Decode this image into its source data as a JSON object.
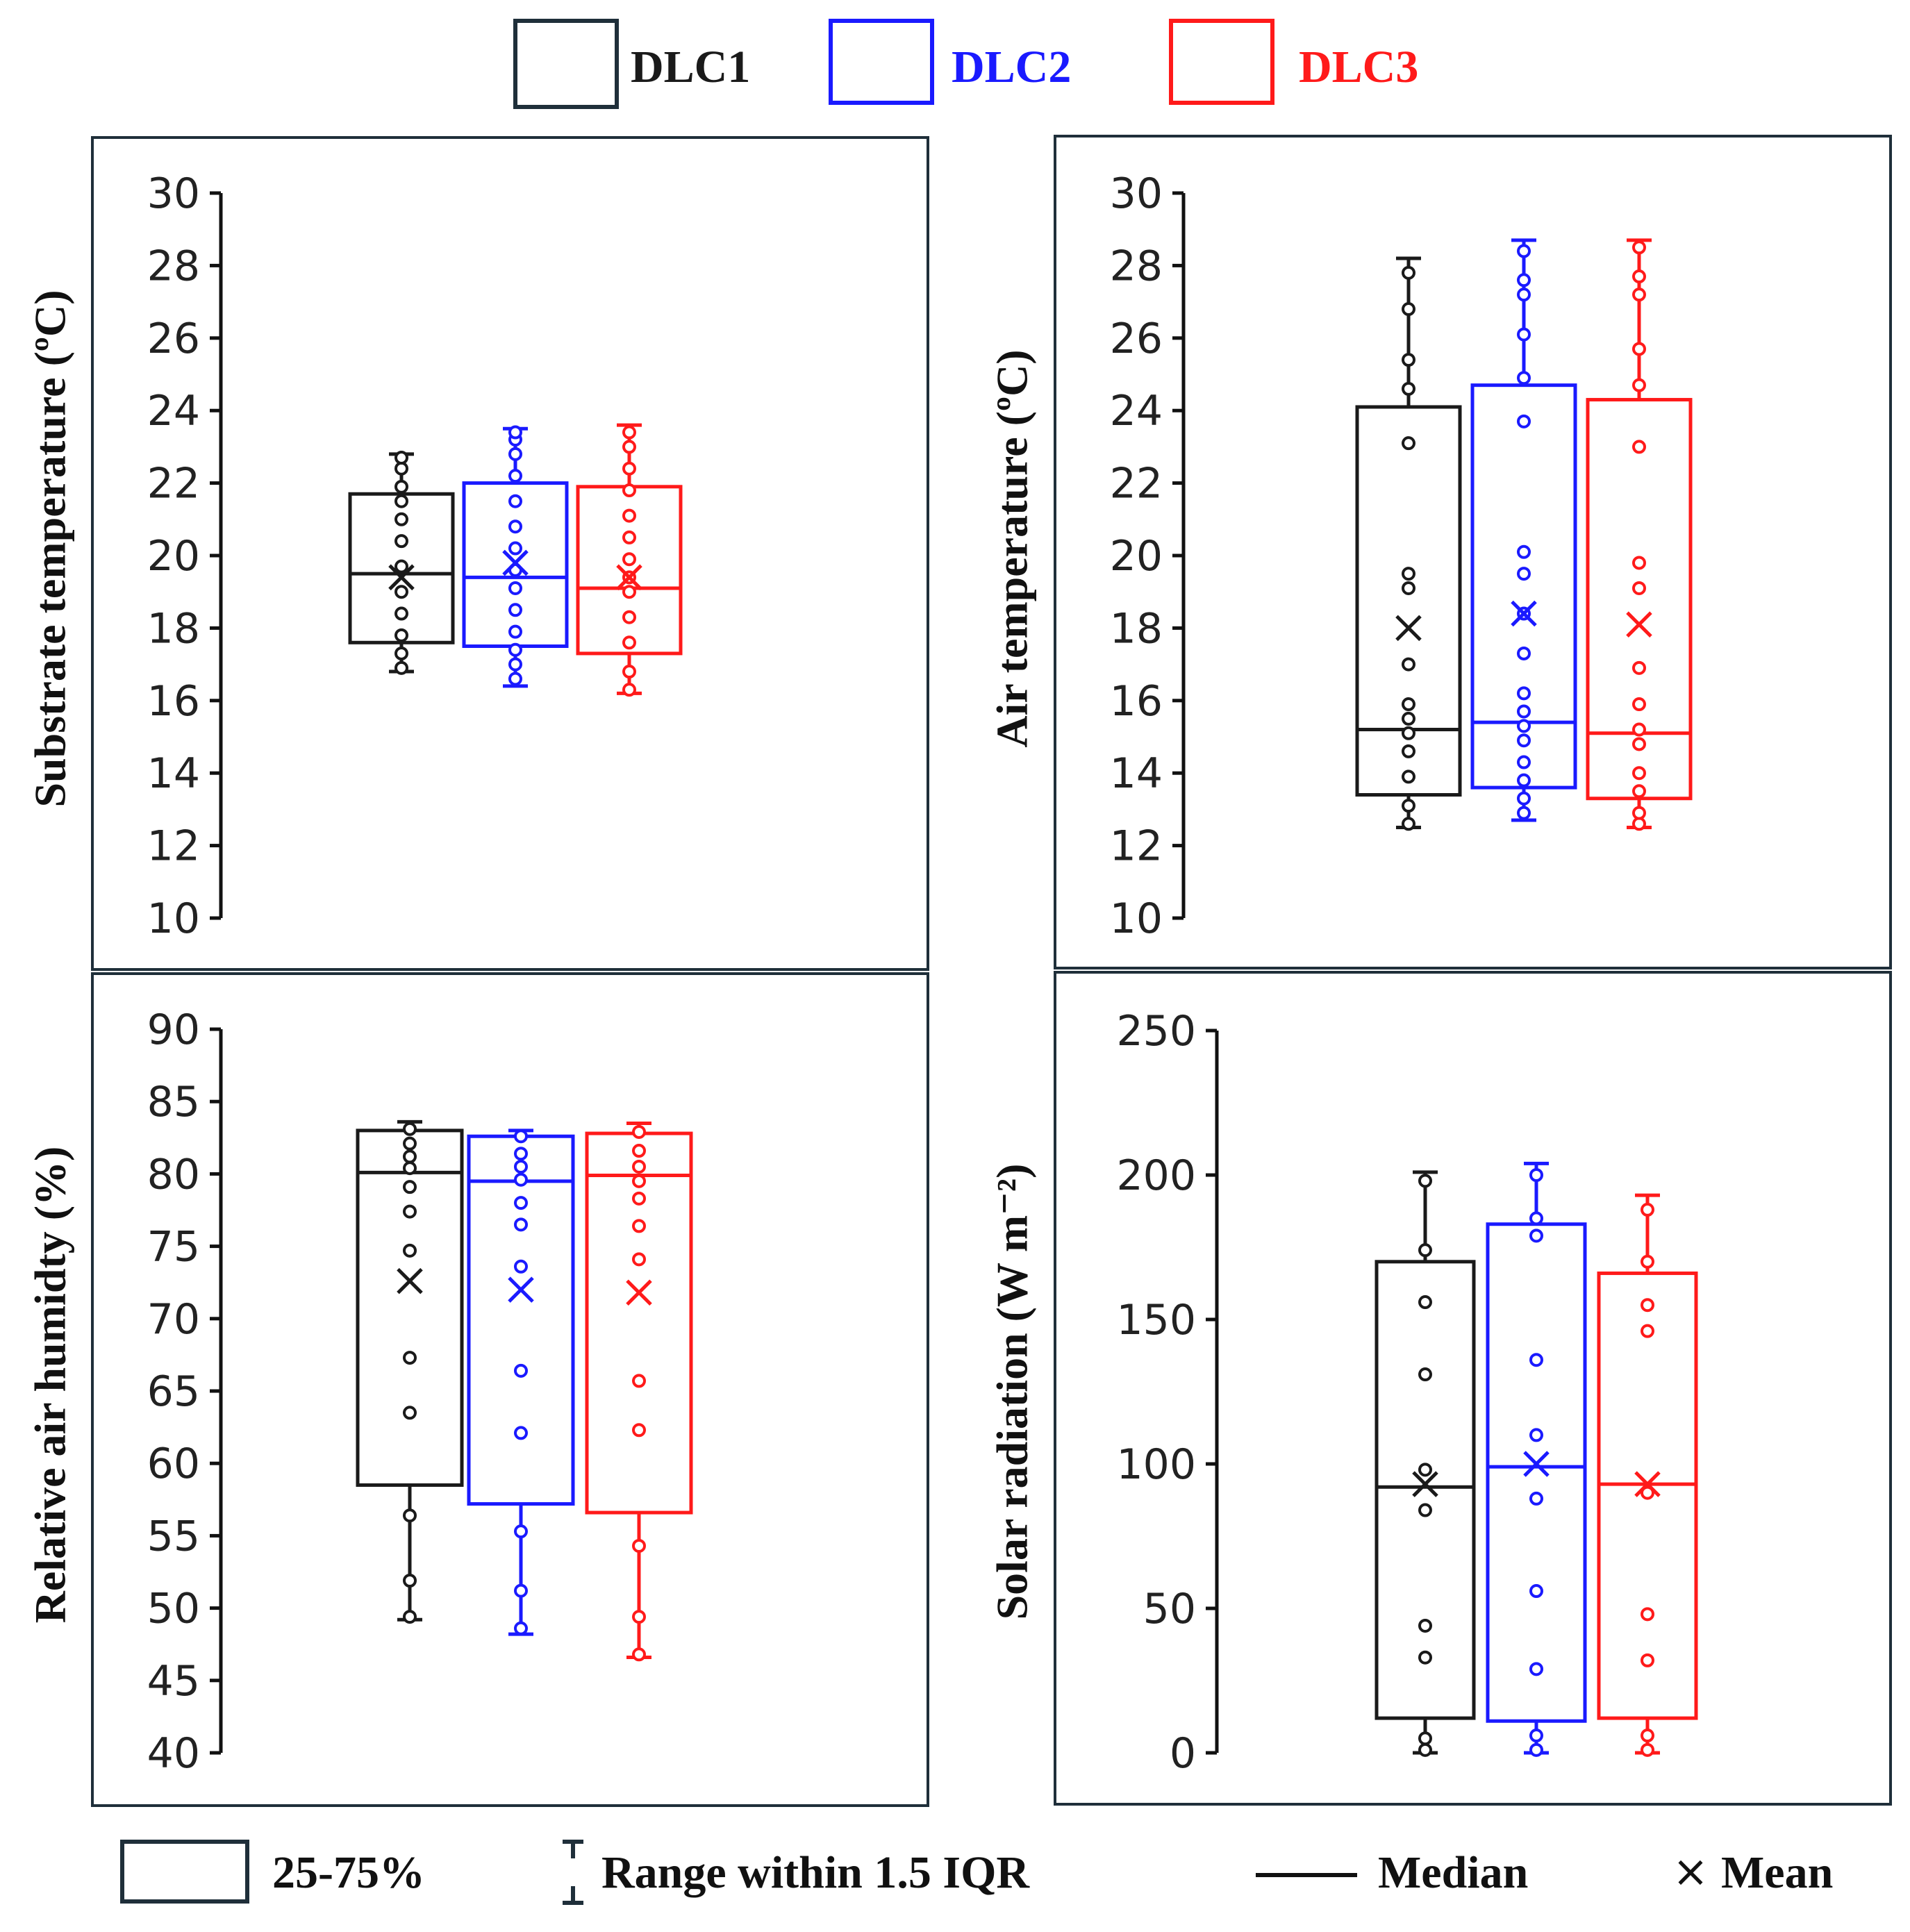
{
  "legend": {
    "series": [
      {
        "name": "DLC1",
        "color": "#1a1a1a",
        "frame": "#1f2f3a"
      },
      {
        "name": "DLC2",
        "color": "#1a1aff",
        "frame": "#1a1aff"
      },
      {
        "name": "DLC3",
        "color": "#ff1a1a",
        "frame": "#ff1a1a"
      }
    ]
  },
  "key": {
    "box_label": "25-75%",
    "range_label": "Range within 1.5 IQR",
    "median_label": "Median",
    "mean_symbol": "×",
    "mean_label": "Mean"
  },
  "chart_data": [
    {
      "type": "box",
      "id": "substrate",
      "ylabel": "Substrate temperature (ºC)",
      "ylim": [
        10,
        30
      ],
      "yticks": [
        10,
        12,
        14,
        16,
        18,
        20,
        22,
        24,
        26,
        28,
        30
      ],
      "series": [
        {
          "name": "DLC1",
          "q1": 17.6,
          "median": 19.5,
          "q3": 21.7,
          "mean": 19.4,
          "whisker_low": 16.8,
          "whisker_high": 22.8,
          "points": [
            16.9,
            17.3,
            17.8,
            18.4,
            19.0,
            19.7,
            20.4,
            21.0,
            21.5,
            21.9,
            22.4,
            22.7
          ]
        },
        {
          "name": "DLC2",
          "q1": 17.5,
          "median": 19.4,
          "q3": 22.0,
          "mean": 19.8,
          "whisker_low": 16.4,
          "whisker_high": 23.5,
          "points": [
            16.6,
            17.0,
            17.4,
            17.9,
            18.5,
            19.1,
            19.6,
            20.2,
            20.8,
            21.5,
            22.2,
            22.8,
            23.2,
            23.4
          ]
        },
        {
          "name": "DLC3",
          "q1": 17.3,
          "median": 19.1,
          "q3": 21.9,
          "mean": 19.4,
          "whisker_low": 16.2,
          "whisker_high": 23.6,
          "points": [
            16.3,
            16.8,
            17.6,
            18.3,
            19.0,
            19.4,
            19.9,
            20.5,
            21.1,
            21.8,
            22.4,
            23.0,
            23.4
          ]
        }
      ]
    },
    {
      "type": "box",
      "id": "air_temp",
      "ylabel": "Air temperature (ºC)",
      "ylim": [
        10,
        30
      ],
      "yticks": [
        10,
        12,
        14,
        16,
        18,
        20,
        22,
        24,
        26,
        28,
        30
      ],
      "series": [
        {
          "name": "DLC1",
          "q1": 13.4,
          "median": 15.2,
          "q3": 24.1,
          "mean": 18.0,
          "whisker_low": 12.5,
          "whisker_high": 28.2,
          "points": [
            12.6,
            13.1,
            13.9,
            14.6,
            15.1,
            15.5,
            15.9,
            17.0,
            19.1,
            19.5,
            23.1,
            24.6,
            25.4,
            26.8,
            27.8
          ]
        },
        {
          "name": "DLC2",
          "q1": 13.6,
          "median": 15.4,
          "q3": 24.7,
          "mean": 18.4,
          "whisker_low": 12.7,
          "whisker_high": 28.7,
          "points": [
            12.9,
            13.3,
            13.8,
            14.3,
            14.9,
            15.3,
            15.7,
            16.2,
            17.3,
            18.4,
            19.5,
            20.1,
            23.7,
            24.9,
            26.1,
            27.2,
            27.6,
            28.4
          ]
        },
        {
          "name": "DLC3",
          "q1": 13.3,
          "median": 15.1,
          "q3": 24.3,
          "mean": 18.1,
          "whisker_low": 12.5,
          "whisker_high": 28.7,
          "points": [
            12.6,
            12.9,
            13.5,
            14.0,
            14.8,
            15.2,
            15.9,
            16.9,
            19.1,
            19.8,
            23.0,
            24.7,
            25.7,
            27.2,
            27.7,
            28.5
          ]
        }
      ]
    },
    {
      "type": "box",
      "id": "humidity",
      "ylabel": "Relative air humidty (%)",
      "ylim": [
        40,
        90
      ],
      "yticks": [
        40,
        45,
        50,
        55,
        60,
        65,
        70,
        75,
        80,
        85,
        90
      ],
      "series": [
        {
          "name": "DLC1",
          "q1": 58.5,
          "median": 80.1,
          "q3": 83.0,
          "mean": 72.6,
          "whisker_low": 49.2,
          "whisker_high": 83.6,
          "points": [
            49.4,
            51.9,
            56.4,
            63.5,
            67.3,
            74.7,
            77.4,
            79.1,
            80.4,
            81.2,
            82.1,
            83.1
          ]
        },
        {
          "name": "DLC2",
          "q1": 57.2,
          "median": 79.5,
          "q3": 82.6,
          "mean": 72.0,
          "whisker_low": 48.2,
          "whisker_high": 83.0,
          "points": [
            48.6,
            51.2,
            55.3,
            62.1,
            66.4,
            73.6,
            76.5,
            78.0,
            79.6,
            80.5,
            81.4,
            82.6
          ]
        },
        {
          "name": "DLC3",
          "q1": 56.6,
          "median": 79.9,
          "q3": 82.8,
          "mean": 71.8,
          "whisker_low": 46.6,
          "whisker_high": 83.5,
          "points": [
            46.8,
            49.4,
            54.3,
            62.3,
            65.7,
            74.1,
            76.4,
            78.3,
            79.5,
            80.5,
            81.6,
            82.9
          ]
        }
      ]
    },
    {
      "type": "box",
      "id": "solar",
      "ylabel": "Solar radiation (W m⁻²)",
      "ylim": [
        0,
        250
      ],
      "yticks": [
        0,
        50,
        100,
        150,
        200,
        250
      ],
      "series": [
        {
          "name": "DLC1",
          "q1": 12,
          "median": 92,
          "q3": 170,
          "mean": 93,
          "whisker_low": 0,
          "whisker_high": 201,
          "points": [
            1,
            5,
            33,
            44,
            84,
            98,
            131,
            156,
            174,
            198
          ]
        },
        {
          "name": "DLC2",
          "q1": 11,
          "median": 99,
          "q3": 183,
          "mean": 100,
          "whisker_low": 0,
          "whisker_high": 204,
          "points": [
            1,
            6,
            29,
            56,
            88,
            110,
            136,
            179,
            185,
            200
          ]
        },
        {
          "name": "DLC3",
          "q1": 12,
          "median": 93,
          "q3": 166,
          "mean": 93,
          "whisker_low": 0,
          "whisker_high": 193,
          "points": [
            1,
            6,
            32,
            48,
            90,
            146,
            155,
            170,
            188
          ]
        }
      ]
    }
  ]
}
